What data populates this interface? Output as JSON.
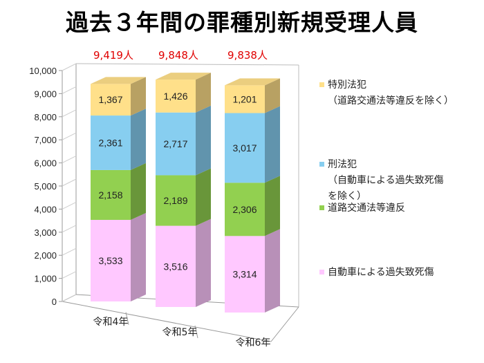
{
  "chart_data": {
    "type": "bar",
    "stacked": true,
    "style": "3d",
    "title": "過去３年間の罪種別新規受理人員",
    "categories": [
      "令和4年",
      "令和5年",
      "令和6年"
    ],
    "ylim": [
      0,
      10000
    ],
    "yticks": [
      "0",
      "1,000",
      "2,000",
      "3,000",
      "4,000",
      "5,000",
      "6,000",
      "7,000",
      "8,000",
      "9,000",
      "10,000"
    ],
    "grid": false,
    "legend_position": "right",
    "totals": [
      "9,419人",
      "9,848人",
      "9,838人"
    ],
    "series": [
      {
        "name": "自動車による過失致死傷",
        "legend_lines": [
          "自動車による過失致死傷"
        ],
        "values": [
          3533,
          3516,
          3314
        ],
        "labels": [
          "3,533",
          "3,516",
          "3,314"
        ],
        "color": "#ffc8ff"
      },
      {
        "name": "道路交通法等違反",
        "legend_lines": [
          "道路交通法等違反"
        ],
        "values": [
          2158,
          2189,
          2306
        ],
        "labels": [
          "2,158",
          "2,189",
          "2,306"
        ],
        "color": "#92d050"
      },
      {
        "name": "刑法犯（自動車による過失致死傷を除く）",
        "legend_lines": [
          "刑法犯",
          "（自動車による過失致死傷",
          "を除く）"
        ],
        "values": [
          2361,
          2717,
          3017
        ],
        "labels": [
          "2,361",
          "2,717",
          "3,017"
        ],
        "color": "#87cef0"
      },
      {
        "name": "特別法犯（道路交通法等違反を除く）",
        "legend_lines": [
          "特別法犯",
          "（道路交通法等違反を除く）"
        ],
        "values": [
          1367,
          1426,
          1201
        ],
        "labels": [
          "1,367",
          "1,426",
          "1,201"
        ],
        "color": "#ffe08a"
      }
    ]
  }
}
